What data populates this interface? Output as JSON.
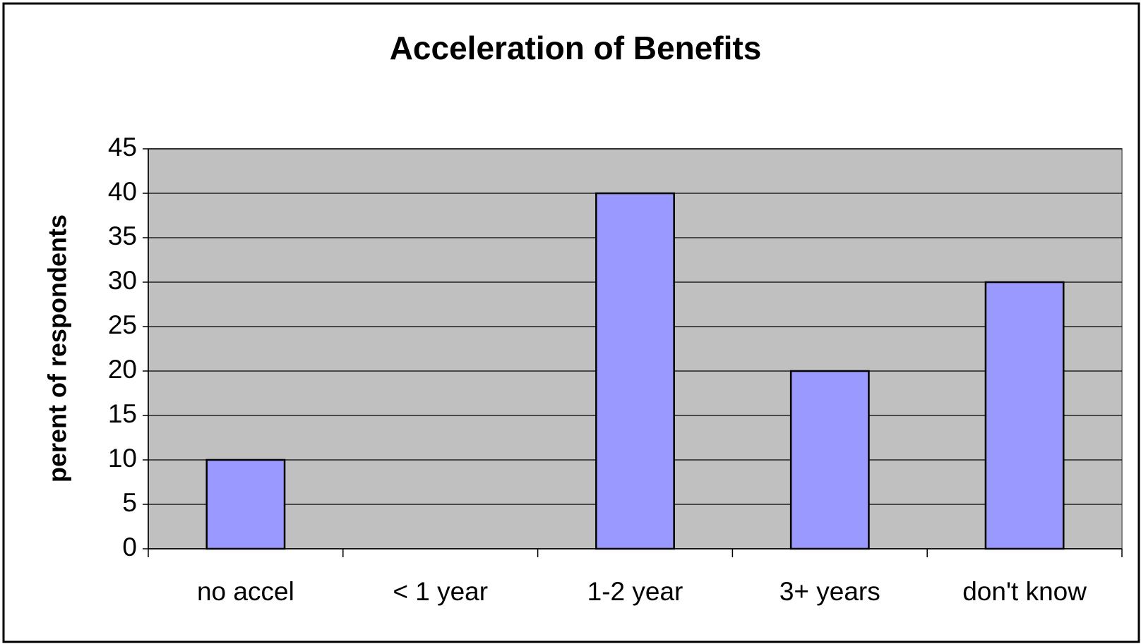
{
  "chart_data": {
    "type": "bar",
    "title": "Acceleration of Benefits",
    "y_label": "perent of respondents",
    "categories": [
      "no accel",
      "< 1 year",
      "1-2 year",
      "3+ years",
      "don't know"
    ],
    "values": [
      10,
      0,
      40,
      20,
      30
    ],
    "color": "#9999ff",
    "ylim": [
      0,
      45
    ],
    "yticks": [
      0,
      5,
      10,
      15,
      20,
      25,
      30,
      35,
      40,
      45
    ],
    "grid": true
  }
}
